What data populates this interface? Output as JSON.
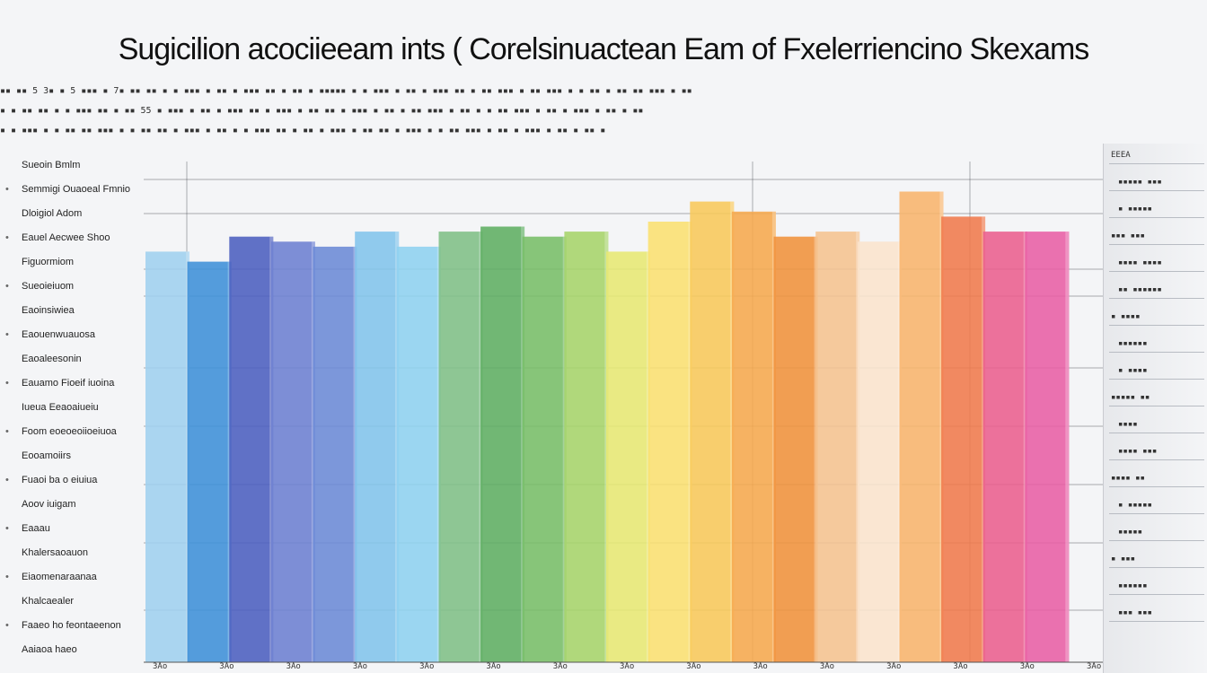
{
  "chart_data": {
    "type": "bar",
    "title": "Sugicilion acociieeam ints ( Corelsinuactean Eam of Fxelerriencino Skexams",
    "ylim": [
      0,
      100
    ],
    "categories": [
      "",
      "",
      "",
      "",
      "",
      "",
      "",
      "",
      "",
      "",
      "",
      "",
      "",
      "",
      "",
      "",
      "",
      "",
      "",
      "",
      "",
      ""
    ],
    "values": [
      82,
      80,
      85,
      84,
      83,
      86,
      83,
      86,
      87,
      85,
      86,
      82,
      88,
      92,
      90,
      85,
      86,
      84,
      94,
      89,
      86,
      86
    ],
    "colors": [
      "#9fd0ef",
      "#3d8fd8",
      "#4b5fbf",
      "#6c7fd2",
      "#6b8ad6",
      "#82c4ec",
      "#8ed1f0",
      "#7fbf86",
      "#5fae62",
      "#78be68",
      "#a6d46a",
      "#e7e873",
      "#fae071",
      "#f8c85a",
      "#f6a94d",
      "#f0923b",
      "#f5c38f",
      "#fbe4cd",
      "#f8b46c",
      "#f07a4c",
      "#eb5f8e",
      "#e85fa5"
    ],
    "grid": true,
    "legend": "none"
  },
  "y_labels": [
    "Sueoin Bmlm",
    "Semmigi Ouaoeal Fmnio",
    "Dloigiol Adom",
    "Eauel Aecwee Shoo",
    "Figuormiom",
    "Sueoieiuom",
    "Eaoinsiwiea",
    "Eaouenwuauosa",
    "Eaoaleesonin",
    "Eauamo Fioeif iuoina",
    "Iueua Eeaoaiueiu",
    "Foom eoeoeoiioeiuoa",
    "Eooamoiirs",
    "Fuaoi ba o eiuiua",
    "Aoov iuigam",
    "Eaaau",
    "Khalersaoauon",
    "Eiaomenaraanaa",
    "Khalcaealer",
    "Faaeo ho feontaeenon",
    "Aaiaoa haeo"
  ],
  "noise_rows": [
    "▪▪ ▪▪ 5 3▪ ▪ 5 ▪▪▪ ▪ 7▪ ▪▪ ▪▪ ▪ ▪ ▪▪▪ ▪ ▪▪ ▪ ▪▪▪ ▪▪ ▪ ▪▪ ▪ ▪▪▪▪▪ ▪ ▪ ▪▪▪ ▪ ▪▪ ▪ ▪▪▪ ▪▪ ▪ ▪▪ ▪▪▪ ▪ ▪▪ ▪▪▪ ▪ ▪ ▪▪ ▪ ▪▪ ▪▪ ▪▪▪ ▪ ▪▪",
    "▪ ▪ ▪▪ ▪▪ ▪ ▪ ▪▪▪ ▪▪ ▪ ▪▪ 55 ▪ ▪▪▪ ▪ ▪▪ ▪ ▪▪▪ ▪▪ ▪ ▪▪▪ ▪ ▪▪ ▪▪ ▪ ▪▪▪ ▪ ▪▪ ▪ ▪▪ ▪▪▪ ▪ ▪▪ ▪ ▪ ▪▪ ▪▪▪ ▪ ▪▪ ▪ ▪▪▪ ▪ ▪▪ ▪ ▪▪",
    "▪ ▪ ▪▪▪ ▪ ▪ ▪▪ ▪▪ ▪▪▪ ▪ ▪ ▪▪ ▪▪ ▪ ▪▪▪ ▪ ▪▪ ▪ ▪ ▪▪▪ ▪▪ ▪ ▪▪ ▪ ▪▪▪ ▪ ▪▪ ▪▪ ▪ ▪▪▪ ▪ ▪ ▪▪ ▪▪▪ ▪ ▪▪ ▪ ▪▪▪ ▪ ▪▪ ▪ ▪▪ ▪"
  ],
  "right_panel": [
    "EEEA",
    "▪▪▪▪▪ ▪▪▪",
    "▪ ▪▪▪▪▪",
    "▪▪▪ ▪▪▪",
    "▪▪▪▪ ▪▪▪▪",
    "▪▪ ▪▪▪▪▪▪",
    "▪ ▪▪▪▪",
    "▪▪▪▪▪▪",
    "▪ ▪▪▪▪",
    "▪▪▪▪▪ ▪▪",
    "▪▪▪▪",
    "▪▪▪▪ ▪▪▪",
    "▪▪▪▪ ▪▪",
    "▪ ▪▪▪▪▪",
    "▪▪▪▪▪",
    "▪ ▪▪▪",
    "▪▪▪▪▪▪",
    "▪▪▪ ▪▪▪"
  ],
  "x_labels": [
    "3Ao",
    "3Ao",
    "3Ao",
    "3Ao",
    "3Ao",
    "3Ao",
    "3Ao",
    "3Ao",
    "3Ao",
    "3Ao",
    "3Ao",
    "3Ao",
    "3Ao",
    "3Ao",
    "3Ao"
  ]
}
